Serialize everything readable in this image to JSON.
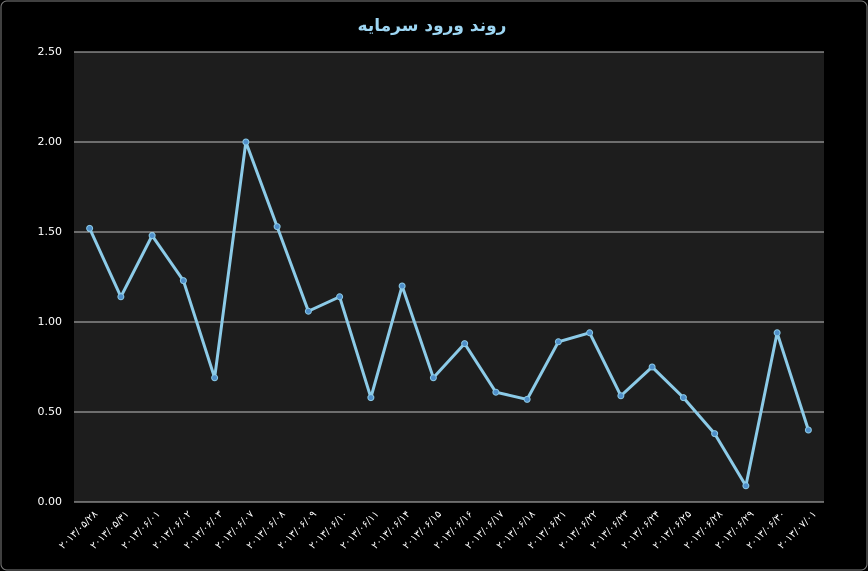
{
  "chart_data": {
    "type": "line",
    "title": "روند ورود سرمایه",
    "categories": [
      "۲۰۱۳/۰۵/۲۸",
      "۲۰۱۳/۰۵/۳۱",
      "۲۰۱۳/۰۶/۰۱",
      "۲۰۱۳/۰۶/۰۲",
      "۲۰۱۳/۰۶/۰۳",
      "۲۰۱۳/۰۶/۰۷",
      "۲۰۱۳/۰۶/۰۸",
      "۲۰۱۳/۰۶/۰۹",
      "۲۰۱۳/۰۶/۱۰",
      "۲۰۱۳/۰۶/۱۱",
      "۲۰۱۳/۰۶/۱۴",
      "۲۰۱۳/۰۶/۱۵",
      "۲۰۱۳/۰۶/۱۶",
      "۲۰۱۳/۰۶/۱۷",
      "۲۰۱۳/۰۶/۱۸",
      "۲۰۱۳/۰۶/۲۱",
      "۲۰۱۳/۰۶/۲۲",
      "۲۰۱۳/۰۶/۲۳",
      "۲۰۱۳/۰۶/۲۴",
      "۲۰۱۳/۰۶/۲۵",
      "۲۰۱۳/۰۶/۲۸",
      "۲۰۱۳/۰۶/۲۹",
      "۲۰۱۳/۰۶/۳۰",
      "۲۰۱۳/۰۷/۰۱"
    ],
    "values": [
      1.52,
      1.14,
      1.48,
      1.23,
      0.69,
      2.0,
      1.53,
      1.06,
      1.14,
      0.58,
      1.2,
      0.69,
      0.88,
      0.61,
      0.57,
      0.89,
      0.94,
      0.59,
      0.75,
      0.58,
      0.38,
      0.09,
      0.94,
      0.4
    ],
    "color": "#8ccbe8",
    "ylim": [
      0,
      2.5
    ],
    "yticks": [
      {
        "value": 0,
        "label": "0.00"
      },
      {
        "value": 0.5,
        "label": "0.50"
      },
      {
        "value": 1,
        "label": "1.00"
      },
      {
        "value": 1.5,
        "label": "1.50"
      },
      {
        "value": 2,
        "label": "2.00"
      },
      {
        "value": 2.5,
        "label": "2.50"
      }
    ],
    "grid": true
  }
}
